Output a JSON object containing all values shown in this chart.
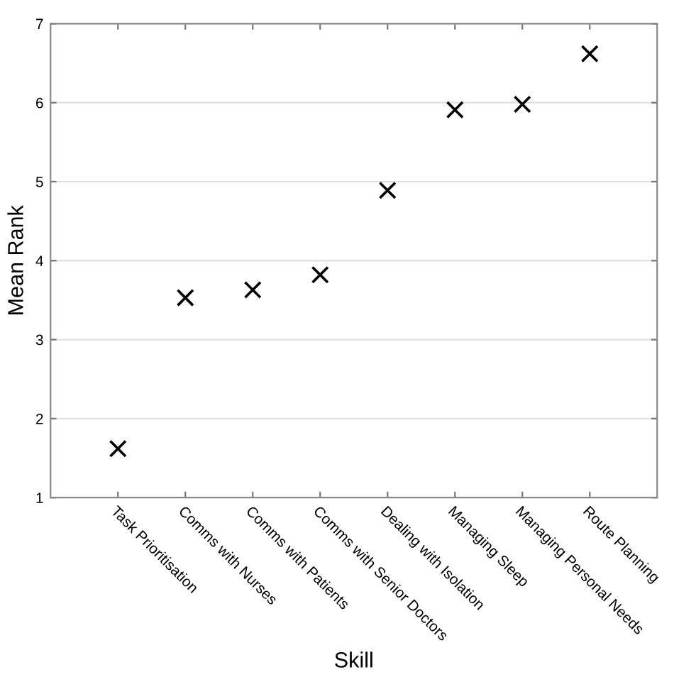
{
  "chart_data": {
    "type": "scatter",
    "xlabel": "Skill",
    "ylabel": "Mean Rank",
    "categories": [
      "Task Prioritisation",
      "Comms with Nurses",
      "Comms with Patients",
      "Comms with Senior Doctors",
      "Dealing with Isolation",
      "Managing Sleep",
      "Managing Personal Needs",
      "Route Planning"
    ],
    "series": [
      {
        "color": "#000000",
        "values": [
          1.62,
          3.53,
          3.63,
          3.82,
          4.89,
          5.91,
          5.98,
          6.62
        ]
      }
    ],
    "marker": "cross",
    "ylim": [
      1,
      7
    ],
    "yticks": [
      1,
      2,
      3,
      4,
      5,
      6,
      7
    ],
    "grid": "y"
  }
}
